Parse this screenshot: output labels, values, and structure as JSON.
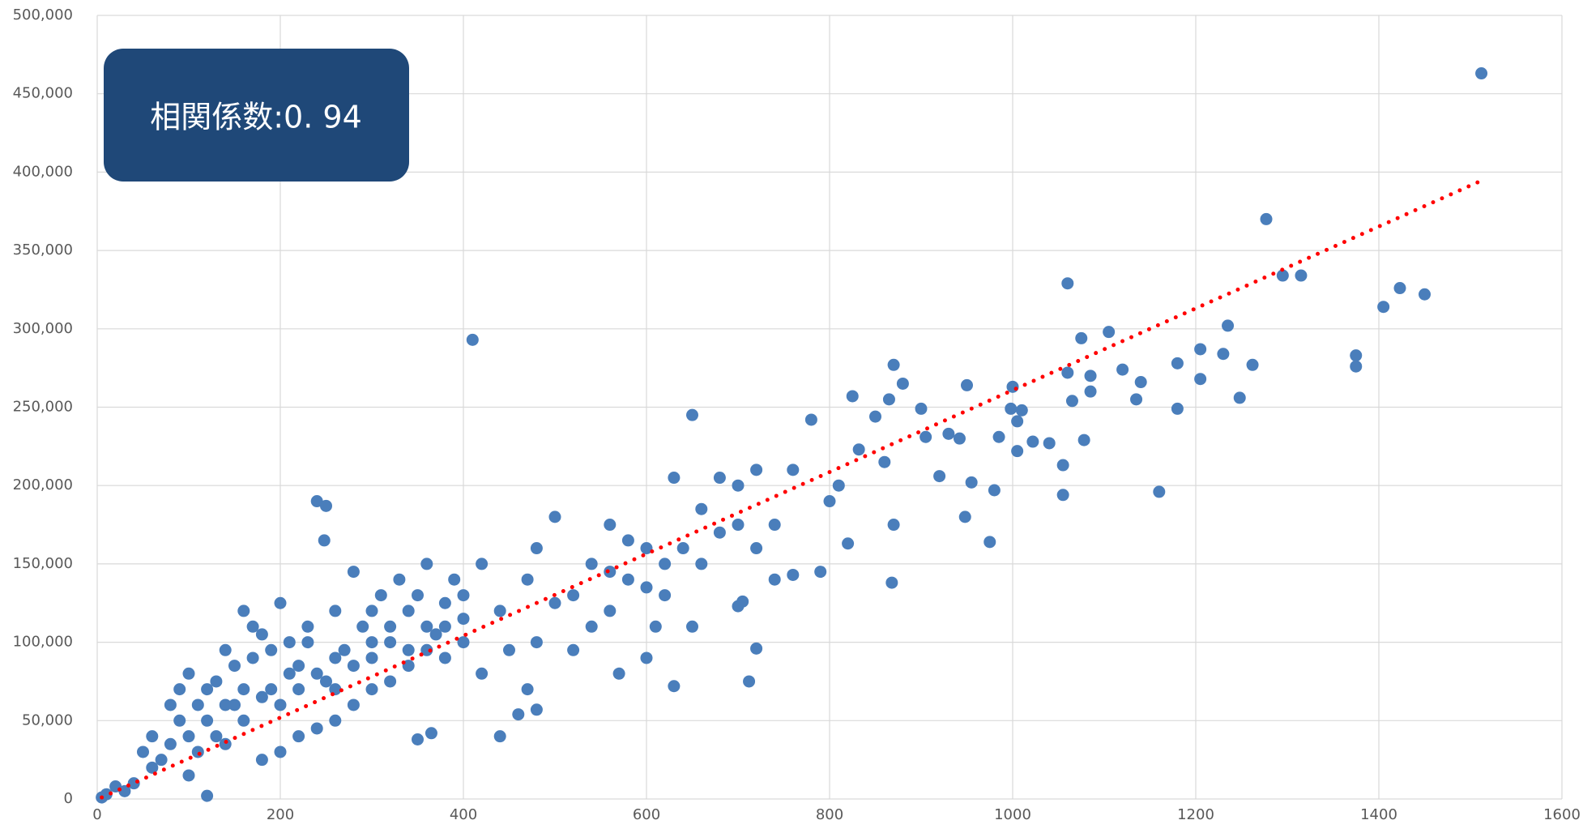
{
  "chart_data": {
    "type": "scatter",
    "annotation": "相関係数:0. 94",
    "color": "#4a7ebb",
    "grid": true,
    "xlim": [
      0,
      1600
    ],
    "xticks": [
      0,
      200,
      400,
      600,
      800,
      1000,
      1200,
      1400,
      1600
    ],
    "ylim": [
      0,
      500000
    ],
    "yticks": [
      0,
      {
        "value": 50000,
        "label": "50,000"
      },
      {
        "value": 100000,
        "label": "100,000"
      },
      {
        "value": 150000,
        "label": "150,000"
      },
      {
        "value": 200000,
        "label": "200,000"
      },
      {
        "value": 250000,
        "label": "250,000"
      },
      {
        "value": 300000,
        "label": "300,000"
      },
      {
        "value": 350000,
        "label": "350,000"
      },
      {
        "value": 400000,
        "label": "400,000"
      },
      {
        "value": 450000,
        "label": "450,000"
      },
      {
        "value": 500000,
        "label": "500,000"
      }
    ],
    "trendline": {
      "color": "#ff0000",
      "x": [
        5,
        1510
      ],
      "y": [
        1000,
        394000
      ]
    },
    "x": [
      1512,
      1277,
      1060,
      410,
      1295,
      1315,
      1423,
      1450,
      1405,
      1375,
      1375,
      1235,
      1205,
      1230,
      1180,
      1262,
      1205,
      1248,
      1180,
      1160,
      1105,
      1075,
      1085,
      1060,
      1120,
      1140,
      1135,
      1085,
      1065,
      1078,
      1055,
      1055,
      1040,
      1022,
      1010,
      1000,
      998,
      1005,
      1005,
      985,
      975,
      980,
      950,
      942,
      948,
      955,
      930,
      900,
      905,
      920,
      870,
      865,
      850,
      880,
      860,
      870,
      868,
      825,
      832,
      780,
      810,
      800,
      820,
      790,
      760,
      740,
      760,
      720,
      700,
      680,
      650,
      630,
      660,
      700,
      720,
      740,
      640,
      620,
      600,
      610,
      580,
      560,
      570,
      600,
      630,
      700,
      705,
      712,
      720,
      650,
      560,
      540,
      520,
      500,
      480,
      470,
      440,
      420,
      400,
      380,
      360,
      340,
      320,
      300,
      280,
      260,
      240,
      250,
      248,
      230,
      210,
      190,
      170,
      150,
      130,
      110,
      90,
      70,
      60,
      50,
      40,
      30,
      20,
      10,
      5,
      120,
      440,
      480,
      460,
      470,
      350,
      365,
      300,
      280,
      260,
      240,
      220,
      200,
      180,
      160,
      140,
      100,
      80,
      100,
      120,
      140,
      160,
      180,
      200,
      220,
      260,
      300,
      320,
      340,
      360,
      380,
      400,
      420,
      450,
      480,
      500,
      520,
      540,
      560,
      580,
      600,
      620,
      660,
      680,
      100,
      120,
      140,
      160,
      180,
      200,
      220,
      240,
      260,
      280,
      300,
      320,
      340,
      360,
      380,
      400,
      60,
      80,
      90,
      110,
      130,
      150,
      170,
      190,
      210,
      230,
      250,
      270,
      290,
      310,
      330,
      350,
      370,
      390
    ],
    "y": [
      463000,
      370000,
      329000,
      293000,
      334000,
      334000,
      326000,
      322000,
      314000,
      283000,
      276000,
      302000,
      287000,
      284000,
      278000,
      277000,
      268000,
      256000,
      249000,
      196000,
      298000,
      294000,
      270000,
      272000,
      274000,
      266000,
      255000,
      260000,
      254000,
      229000,
      213000,
      194000,
      227000,
      228000,
      248000,
      263000,
      249000,
      241000,
      222000,
      231000,
      164000,
      197000,
      264000,
      230000,
      180000,
      202000,
      233000,
      249000,
      231000,
      206000,
      277000,
      255000,
      244000,
      265000,
      215000,
      175000,
      138000,
      257000,
      223000,
      242000,
      200000,
      190000,
      163000,
      145000,
      143000,
      140000,
      210000,
      210000,
      200000,
      205000,
      245000,
      205000,
      185000,
      175000,
      160000,
      175000,
      160000,
      150000,
      135000,
      110000,
      140000,
      120000,
      80000,
      90000,
      72000,
      123000,
      126000,
      75000,
      96000,
      110000,
      175000,
      150000,
      130000,
      180000,
      160000,
      140000,
      120000,
      150000,
      130000,
      110000,
      150000,
      120000,
      100000,
      90000,
      145000,
      120000,
      190000,
      187000,
      165000,
      100000,
      80000,
      70000,
      110000,
      60000,
      40000,
      30000,
      50000,
      25000,
      20000,
      30000,
      10000,
      5000,
      8000,
      3000,
      1000,
      2000,
      40000,
      57000,
      54000,
      70000,
      38000,
      42000,
      70000,
      60000,
      50000,
      45000,
      40000,
      30000,
      25000,
      50000,
      35000,
      15000,
      60000,
      80000,
      70000,
      95000,
      120000,
      105000,
      125000,
      85000,
      90000,
      120000,
      75000,
      95000,
      110000,
      90000,
      100000,
      80000,
      95000,
      100000,
      125000,
      95000,
      110000,
      145000,
      165000,
      160000,
      130000,
      150000,
      170000,
      40000,
      50000,
      60000,
      70000,
      65000,
      60000,
      70000,
      80000,
      70000,
      85000,
      100000,
      110000,
      85000,
      95000,
      125000,
      115000,
      40000,
      35000,
      70000,
      60000,
      75000,
      85000,
      90000,
      95000,
      100000,
      110000,
      75000,
      95000,
      110000,
      130000,
      140000,
      130000,
      105000,
      140000
    ]
  }
}
